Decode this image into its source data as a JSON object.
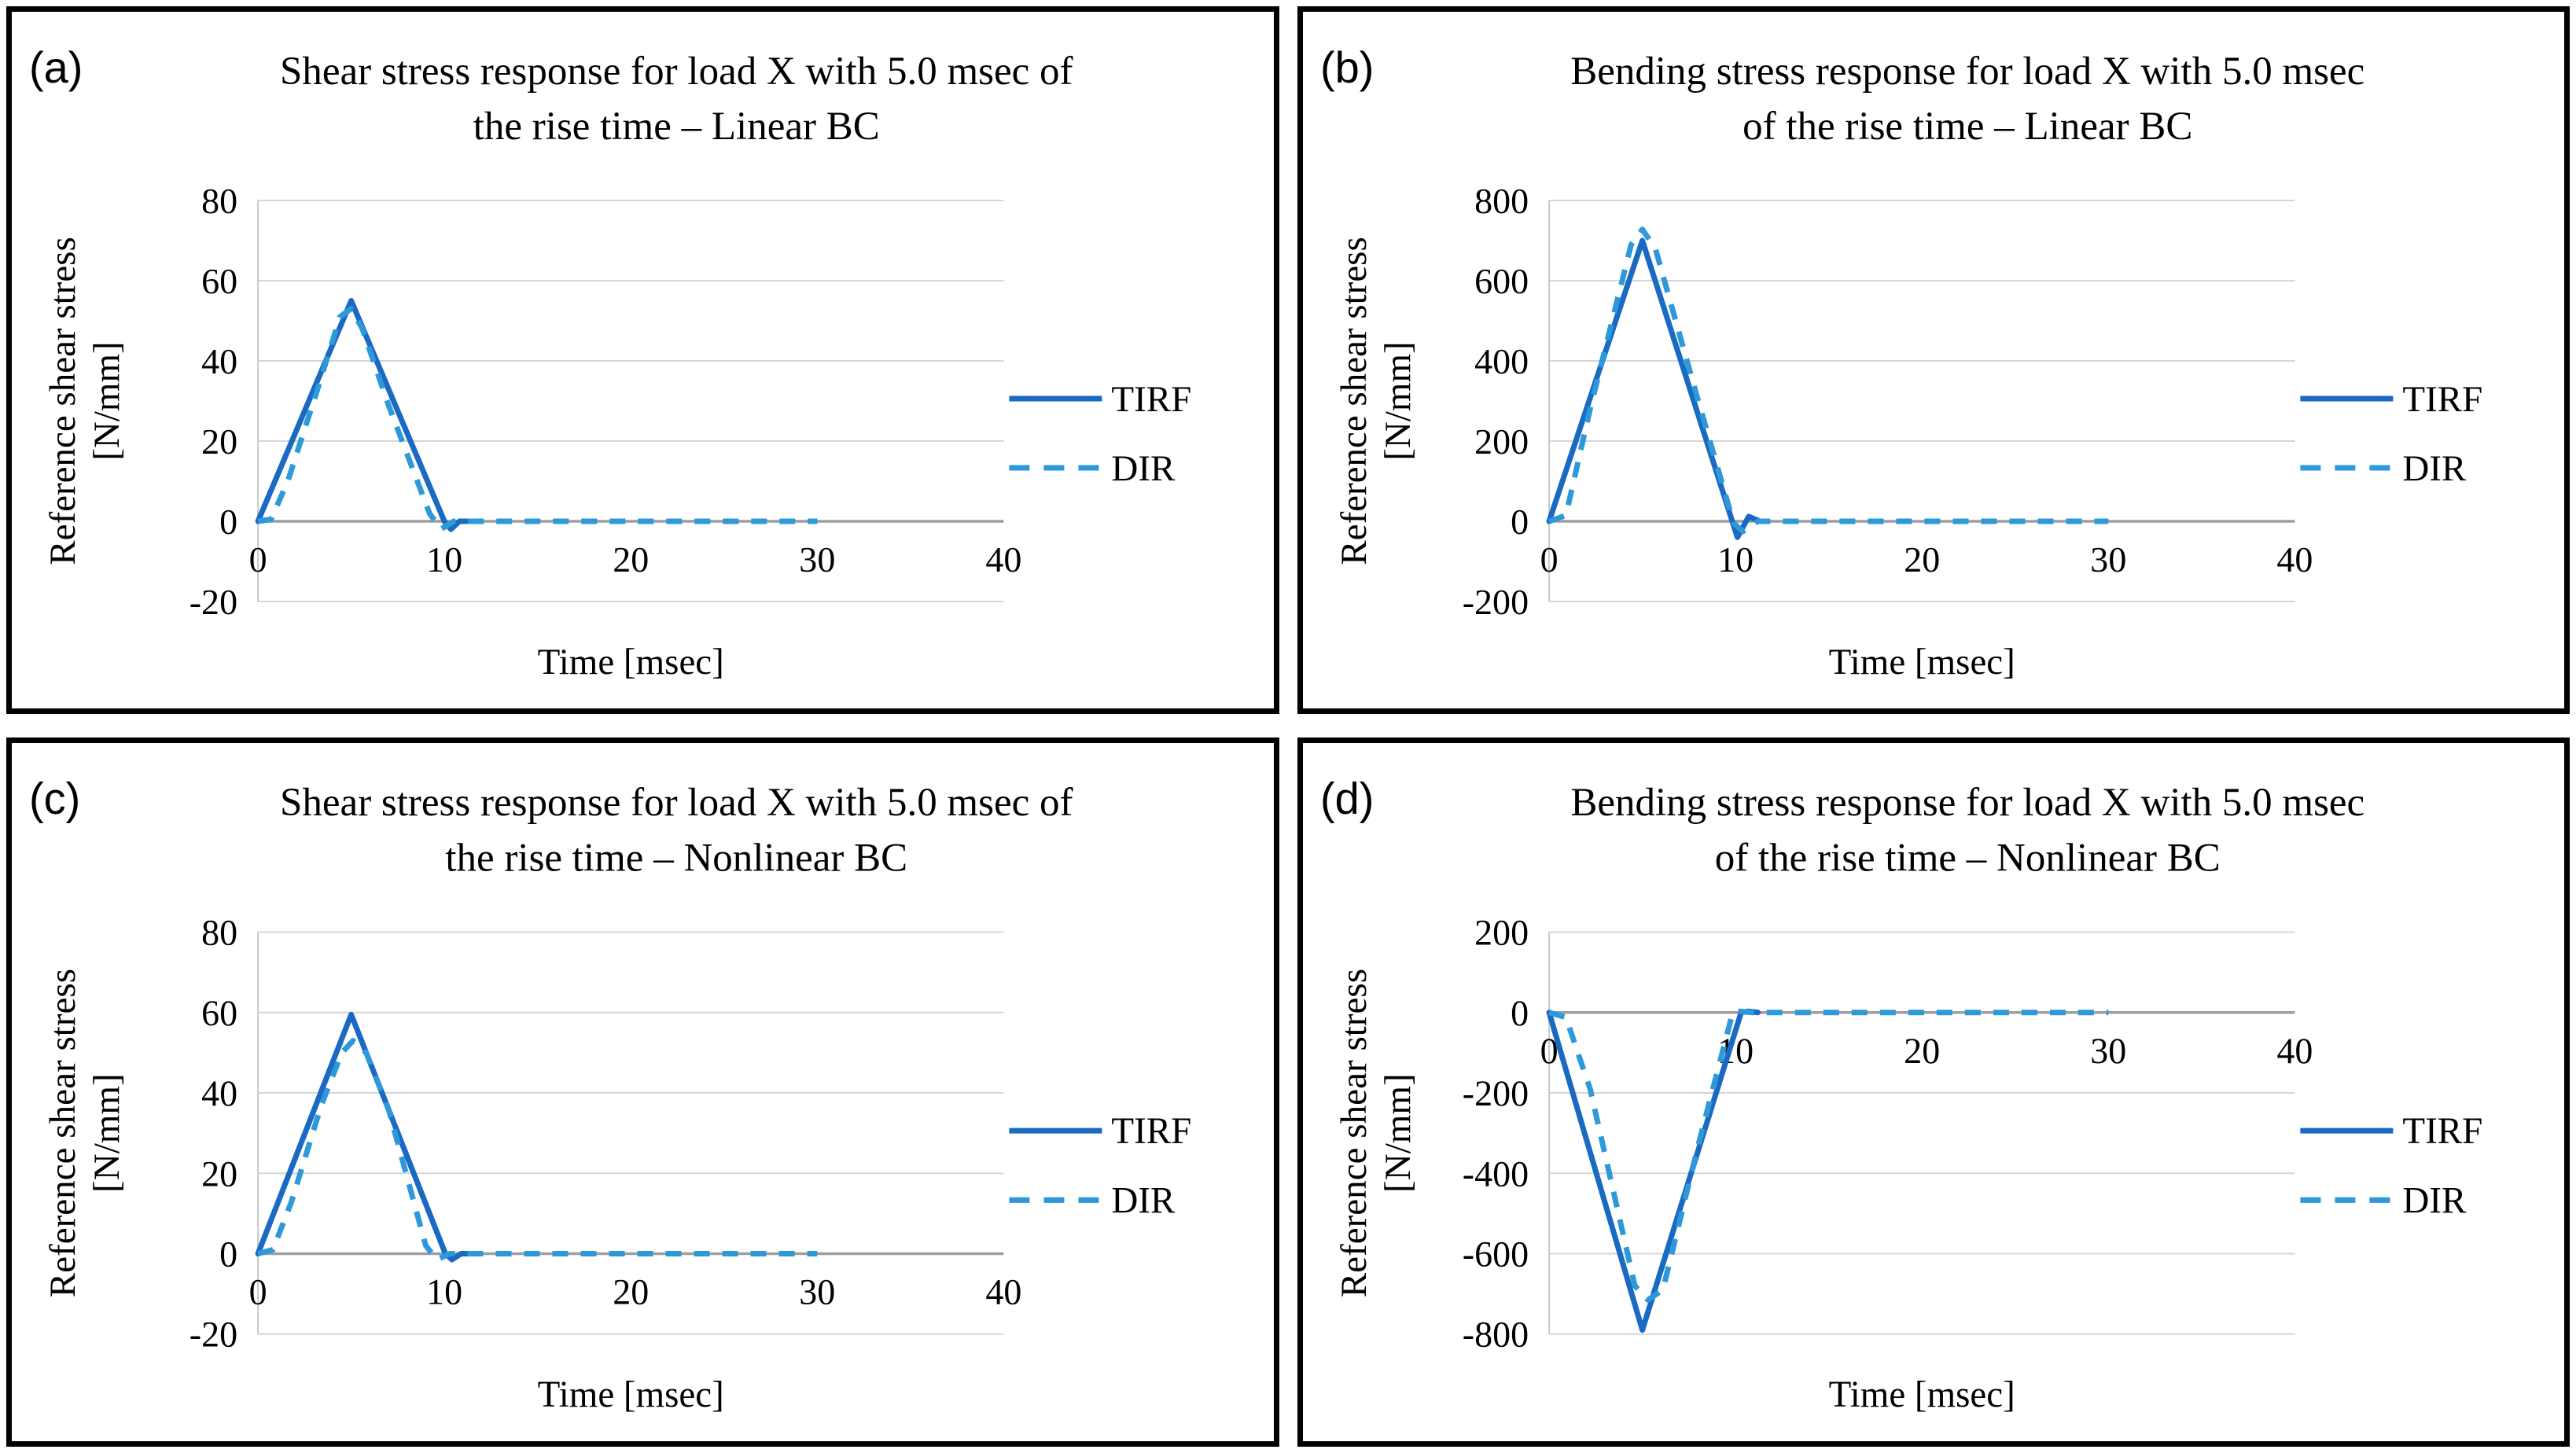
{
  "figure": {
    "background": "#ffffff",
    "panel_border_color": "#000000",
    "grid_color": "#d6d6d6",
    "zero_line_color": "#9e9e9e",
    "axis_line_color": "#c9c9c9",
    "tirf_color": "#1a6ac3",
    "dir_color": "#2e99d9"
  },
  "chart_data": [
    {
      "panel_label": "(a)",
      "type": "line",
      "title": "Shear stress response for load X with 5.0 msec of the rise time – Linear BC",
      "title_lines": [
        "Shear stress response for load X with 5.0 msec of",
        "the rise time – Linear BC"
      ],
      "xlabel": "Time [msec]",
      "ylabel": "Reference shear stress [N/mm]",
      "ylabel_lines": [
        "Reference shear stress",
        "[N/mm]"
      ],
      "xlim": [
        0,
        40
      ],
      "ylim": [
        -20,
        80
      ],
      "xticks": [
        0,
        10,
        20,
        30,
        40
      ],
      "yticks": [
        80,
        60,
        40,
        20,
        0,
        -20
      ],
      "grid": true,
      "legend_position": "right",
      "legend": [
        "TIRF",
        "DIR"
      ],
      "series": [
        {
          "name": "TIRF",
          "style": "solid",
          "color": "#1a6ac3",
          "points": [
            [
              0,
              0
            ],
            [
              5,
              55
            ],
            [
              10,
              0
            ],
            [
              10.35,
              -2
            ],
            [
              10.8,
              0
            ],
            [
              11.2,
              0
            ]
          ]
        },
        {
          "name": "DIR",
          "style": "dashed",
          "color": "#2e99d9",
          "points": [
            [
              0,
              0
            ],
            [
              0.7,
              0.5
            ],
            [
              1.6,
              10
            ],
            [
              3.2,
              33
            ],
            [
              4.4,
              51
            ],
            [
              5,
              53
            ],
            [
              5.6,
              48
            ],
            [
              7,
              29
            ],
            [
              9.2,
              2
            ],
            [
              9.8,
              -2
            ],
            [
              10.5,
              0
            ],
            [
              30,
              0
            ]
          ]
        }
      ]
    },
    {
      "panel_label": "(b)",
      "type": "line",
      "title": "Bending stress response for load X with 5.0 msec of the rise time – Linear BC",
      "title_lines": [
        "Bending stress response for load X with 5.0 msec",
        "of the rise time – Linear BC"
      ],
      "xlabel": "Time [msec]",
      "ylabel": "Reference shear stress [N/mm]",
      "ylabel_lines": [
        "Reference shear stress",
        "[N/mm]"
      ],
      "xlim": [
        0,
        40
      ],
      "ylim": [
        -200,
        800
      ],
      "xticks": [
        0,
        10,
        20,
        30,
        40
      ],
      "yticks": [
        800,
        600,
        400,
        200,
        0,
        -200
      ],
      "grid": true,
      "legend_position": "right",
      "legend": [
        "TIRF",
        "DIR"
      ],
      "series": [
        {
          "name": "TIRF",
          "style": "solid",
          "color": "#1a6ac3",
          "points": [
            [
              0,
              0
            ],
            [
              5,
              700
            ],
            [
              10.1,
              -40
            ],
            [
              10.7,
              12
            ],
            [
              11.3,
              0
            ]
          ]
        },
        {
          "name": "DIR",
          "style": "dashed",
          "color": "#2e99d9",
          "points": [
            [
              0,
              0
            ],
            [
              0.9,
              15
            ],
            [
              2.2,
              280
            ],
            [
              4.4,
              690
            ],
            [
              5,
              728
            ],
            [
              5.7,
              680
            ],
            [
              8,
              300
            ],
            [
              9.9,
              -5
            ],
            [
              10.4,
              -25
            ],
            [
              11.2,
              0
            ],
            [
              30,
              0
            ]
          ]
        }
      ]
    },
    {
      "panel_label": "(c)",
      "type": "line",
      "title": "Shear stress response for load X with 5.0 msec of the rise time – Nonlinear BC",
      "title_lines": [
        "Shear stress response for load X with 5.0 msec of",
        "the rise time – Nonlinear BC"
      ],
      "xlabel": "Time [msec]",
      "ylabel": "Reference shear stress [N/mm]",
      "ylabel_lines": [
        "Reference shear stress",
        "[N/mm]"
      ],
      "xlim": [
        0,
        40
      ],
      "ylim": [
        -20,
        80
      ],
      "xticks": [
        0,
        10,
        20,
        30,
        40
      ],
      "yticks": [
        80,
        60,
        40,
        20,
        0,
        -20
      ],
      "grid": true,
      "legend_position": "right",
      "legend": [
        "TIRF",
        "DIR"
      ],
      "series": [
        {
          "name": "TIRF",
          "style": "solid",
          "color": "#1a6ac3",
          "points": [
            [
              0,
              0
            ],
            [
              5,
              59.5
            ],
            [
              10.05,
              0
            ],
            [
              10.4,
              -1.5
            ],
            [
              10.9,
              0
            ],
            [
              11.3,
              0
            ]
          ]
        },
        {
          "name": "DIR",
          "style": "dashed",
          "color": "#2e99d9",
          "points": [
            [
              0,
              0
            ],
            [
              0.8,
              1
            ],
            [
              1.8,
              13
            ],
            [
              3.4,
              37
            ],
            [
              4.5,
              50
            ],
            [
              5.1,
              53
            ],
            [
              5.8,
              50
            ],
            [
              7,
              36
            ],
            [
              9,
              2
            ],
            [
              9.6,
              -1.5
            ],
            [
              10.3,
              0
            ],
            [
              30,
              0
            ]
          ]
        }
      ]
    },
    {
      "panel_label": "(d)",
      "type": "line",
      "title": "Bending stress response for load X with 5.0 msec of the rise time – Nonlinear BC",
      "title_lines": [
        "Bending stress response for load X with 5.0 msec",
        "of the rise time – Nonlinear BC"
      ],
      "xlabel": "Time [msec]",
      "ylabel": "Reference shear stress [N/mm]",
      "ylabel_lines": [
        "Reference shear stress",
        "[N/mm]"
      ],
      "xlim": [
        0,
        40
      ],
      "ylim": [
        -800,
        200
      ],
      "xticks": [
        0,
        10,
        20,
        30,
        40
      ],
      "yticks": [
        200,
        0,
        -200,
        -400,
        -600,
        -800
      ],
      "grid": true,
      "legend_position": "right",
      "legend": [
        "TIRF",
        "DIR"
      ],
      "series": [
        {
          "name": "TIRF",
          "style": "solid",
          "color": "#1a6ac3",
          "points": [
            [
              0,
              0
            ],
            [
              5,
              -790
            ],
            [
              10.3,
              0
            ],
            [
              10.7,
              3
            ],
            [
              11.2,
              0
            ]
          ]
        },
        {
          "name": "DIR",
          "style": "dashed",
          "color": "#2e99d9",
          "points": [
            [
              0,
              0
            ],
            [
              0.9,
              -12
            ],
            [
              2.2,
              -190
            ],
            [
              4.6,
              -680
            ],
            [
              5.3,
              -715
            ],
            [
              6.1,
              -690
            ],
            [
              8,
              -330
            ],
            [
              9.85,
              0
            ],
            [
              10.2,
              3
            ],
            [
              10.9,
              0
            ],
            [
              30,
              0
            ]
          ]
        }
      ]
    }
  ]
}
